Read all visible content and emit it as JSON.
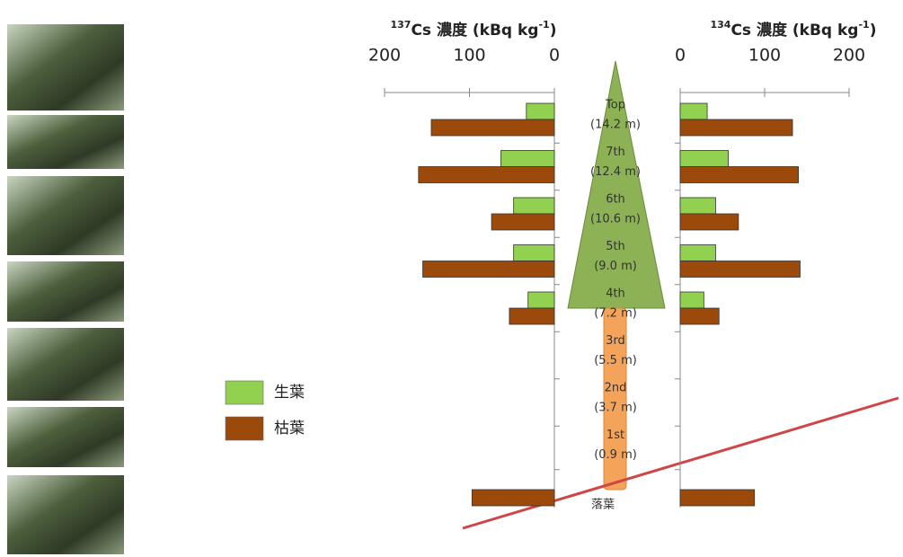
{
  "chart_data": {
    "type": "bar",
    "categories": [
      "Top",
      "7th",
      "6th",
      "5th",
      "4th",
      "3rd",
      "2nd",
      "1st",
      "落葉"
    ],
    "heights": [
      "(14.2 m)",
      "(12.4 m)",
      "(10.6 m)",
      "(9.0 m)",
      "(7.2 m)",
      "(5.5 m)",
      "(3.7 m)",
      "(0.9 m)",
      null
    ],
    "legend": [
      {
        "name": "生葉",
        "color": "#92d050"
      },
      {
        "name": "枯葉",
        "color": "#9c4a0c"
      }
    ],
    "panels": [
      {
        "title": {
          "isotope": "137",
          "text": "Cs 濃度 (kBq kg",
          "exponent": "-1",
          "close": ")"
        },
        "xlim": [
          0,
          200
        ],
        "xticks": [
          200,
          100,
          0
        ],
        "direction": "left",
        "series": [
          {
            "values": [
              33,
              63,
              48,
              48,
              31,
              null,
              null,
              null,
              null
            ]
          },
          {
            "values": [
              145,
              160,
              74,
              155,
              53,
              null,
              null,
              null,
              97
            ]
          }
        ]
      },
      {
        "title": {
          "isotope": "134",
          "text": "Cs 濃度 (kBq kg",
          "exponent": "-1",
          "close": ")"
        },
        "xlim": [
          0,
          200
        ],
        "xticks": [
          0,
          100,
          200
        ],
        "direction": "right",
        "series": [
          {
            "values": [
              32,
              57,
              42,
              42,
              28,
              null,
              null,
              null,
              null
            ]
          },
          {
            "values": [
              133,
              140,
              69,
              142,
              46,
              null,
              null,
              null,
              88
            ]
          }
        ]
      }
    ]
  }
}
